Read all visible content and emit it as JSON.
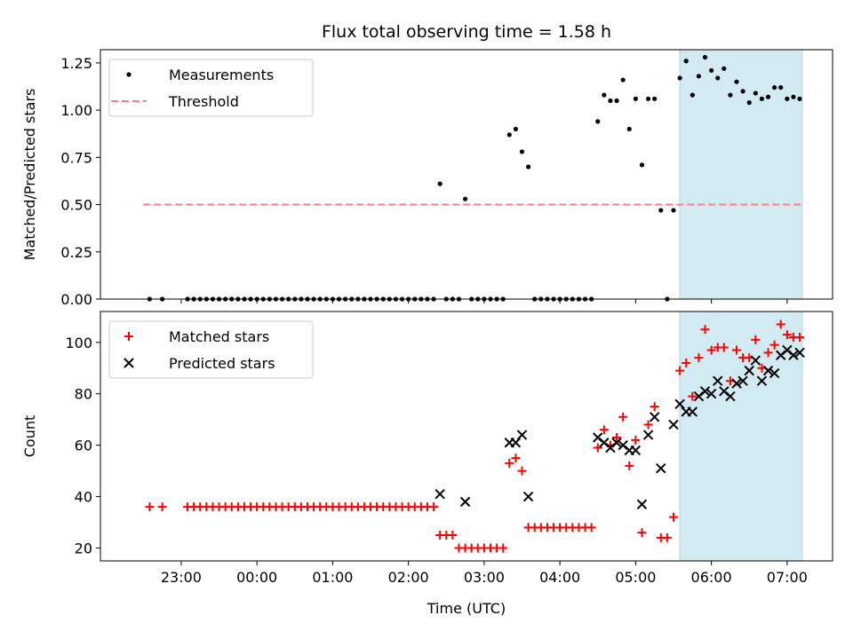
{
  "chart_data": [
    {
      "type": "scatter",
      "title": "Flux total observing time = 1.58 h",
      "ylabel": "Matched/Predicted stars",
      "xlabel": "",
      "ylim": [
        0,
        1.32
      ],
      "yticks": [
        "0.00",
        "0.25",
        "0.50",
        "0.75",
        "1.00",
        "1.25"
      ],
      "x_tick_labels": [],
      "legend_position": "upper-left",
      "shaded_region": {
        "x_start": "05:35",
        "x_end": "07:12",
        "color": "#add8e6"
      },
      "series": [
        {
          "name": "Measurements",
          "marker": "dot",
          "color": "#000000",
          "points": [
            [
              "22:35",
              0
            ],
            [
              "22:45",
              0
            ],
            [
              "23:05",
              0
            ],
            [
              "23:10",
              0
            ],
            [
              "23:15",
              0
            ],
            [
              "23:20",
              0
            ],
            [
              "23:25",
              0
            ],
            [
              "23:30",
              0
            ],
            [
              "23:35",
              0
            ],
            [
              "23:40",
              0
            ],
            [
              "23:45",
              0
            ],
            [
              "23:50",
              0
            ],
            [
              "23:55",
              0
            ],
            [
              "00:00",
              0
            ],
            [
              "00:05",
              0
            ],
            [
              "00:10",
              0
            ],
            [
              "00:15",
              0
            ],
            [
              "00:20",
              0
            ],
            [
              "00:25",
              0
            ],
            [
              "00:30",
              0
            ],
            [
              "00:35",
              0
            ],
            [
              "00:40",
              0
            ],
            [
              "00:45",
              0
            ],
            [
              "00:50",
              0
            ],
            [
              "00:55",
              0
            ],
            [
              "01:00",
              0
            ],
            [
              "01:05",
              0
            ],
            [
              "01:10",
              0
            ],
            [
              "01:15",
              0
            ],
            [
              "01:20",
              0
            ],
            [
              "01:25",
              0
            ],
            [
              "01:30",
              0
            ],
            [
              "01:35",
              0
            ],
            [
              "01:40",
              0
            ],
            [
              "01:45",
              0
            ],
            [
              "01:50",
              0
            ],
            [
              "01:55",
              0
            ],
            [
              "02:00",
              0
            ],
            [
              "02:05",
              0
            ],
            [
              "02:10",
              0
            ],
            [
              "02:15",
              0
            ],
            [
              "02:20",
              0
            ],
            [
              "02:25",
              0.61
            ],
            [
              "02:30",
              0
            ],
            [
              "02:35",
              0
            ],
            [
              "02:40",
              0
            ],
            [
              "02:45",
              0.53
            ],
            [
              "02:50",
              0
            ],
            [
              "02:55",
              0
            ],
            [
              "03:00",
              0
            ],
            [
              "03:05",
              0
            ],
            [
              "03:10",
              0
            ],
            [
              "03:15",
              0
            ],
            [
              "03:20",
              0.87
            ],
            [
              "03:25",
              0.9
            ],
            [
              "03:30",
              0.78
            ],
            [
              "03:35",
              0.7
            ],
            [
              "03:40",
              0
            ],
            [
              "03:45",
              0
            ],
            [
              "03:50",
              0
            ],
            [
              "03:55",
              0
            ],
            [
              "04:00",
              0
            ],
            [
              "04:05",
              0
            ],
            [
              "04:10",
              0
            ],
            [
              "04:15",
              0
            ],
            [
              "04:20",
              0
            ],
            [
              "04:25",
              0
            ],
            [
              "04:30",
              0.94
            ],
            [
              "04:35",
              1.08
            ],
            [
              "04:40",
              1.05
            ],
            [
              "04:45",
              1.05
            ],
            [
              "04:50",
              1.16
            ],
            [
              "04:55",
              0.9
            ],
            [
              "05:00",
              1.06
            ],
            [
              "05:05",
              0.71
            ],
            [
              "05:10",
              1.06
            ],
            [
              "05:15",
              1.06
            ],
            [
              "05:20",
              0.47
            ],
            [
              "05:25",
              0
            ],
            [
              "05:30",
              0.47
            ],
            [
              "05:35",
              1.17
            ],
            [
              "05:40",
              1.26
            ],
            [
              "05:45",
              1.08
            ],
            [
              "05:50",
              1.18
            ],
            [
              "05:55",
              1.28
            ],
            [
              "06:00",
              1.21
            ],
            [
              "06:05",
              1.17
            ],
            [
              "06:10",
              1.22
            ],
            [
              "06:15",
              1.08
            ],
            [
              "06:20",
              1.15
            ],
            [
              "06:25",
              1.1
            ],
            [
              "06:30",
              1.04
            ],
            [
              "06:35",
              1.09
            ],
            [
              "06:40",
              1.06
            ],
            [
              "06:45",
              1.07
            ],
            [
              "06:50",
              1.12
            ],
            [
              "06:55",
              1.12
            ],
            [
              "07:00",
              1.06
            ],
            [
              "07:05",
              1.07
            ],
            [
              "07:10",
              1.06
            ]
          ]
        },
        {
          "name": "Threshold",
          "marker": "dashed-line",
          "color": "#ff7f7f",
          "points": [
            [
              "22:30",
              0.5
            ],
            [
              "07:12",
              0.5
            ]
          ]
        }
      ]
    },
    {
      "type": "scatter",
      "title": "",
      "ylabel": "Count",
      "xlabel": "Time (UTC)",
      "ylim": [
        15,
        112
      ],
      "yticks": [
        "20",
        "40",
        "60",
        "80",
        "100"
      ],
      "x_tick_labels": [
        "23:00",
        "00:00",
        "01:00",
        "02:00",
        "03:00",
        "04:00",
        "05:00",
        "06:00",
        "07:00"
      ],
      "x_range": [
        "21:56",
        "07:36"
      ],
      "legend_position": "upper-left",
      "shaded_region": {
        "x_start": "05:35",
        "x_end": "07:12",
        "color": "#add8e6"
      },
      "series": [
        {
          "name": "Matched stars",
          "marker": "plus",
          "color": "#ff0000",
          "points": [
            [
              "22:35",
              36
            ],
            [
              "22:45",
              36
            ],
            [
              "23:05",
              36
            ],
            [
              "23:10",
              36
            ],
            [
              "23:15",
              36
            ],
            [
              "23:20",
              36
            ],
            [
              "23:25",
              36
            ],
            [
              "23:30",
              36
            ],
            [
              "23:35",
              36
            ],
            [
              "23:40",
              36
            ],
            [
              "23:45",
              36
            ],
            [
              "23:50",
              36
            ],
            [
              "23:55",
              36
            ],
            [
              "00:00",
              36
            ],
            [
              "00:05",
              36
            ],
            [
              "00:10",
              36
            ],
            [
              "00:15",
              36
            ],
            [
              "00:20",
              36
            ],
            [
              "00:25",
              36
            ],
            [
              "00:30",
              36
            ],
            [
              "00:35",
              36
            ],
            [
              "00:40",
              36
            ],
            [
              "00:45",
              36
            ],
            [
              "00:50",
              36
            ],
            [
              "00:55",
              36
            ],
            [
              "01:00",
              36
            ],
            [
              "01:05",
              36
            ],
            [
              "01:10",
              36
            ],
            [
              "01:15",
              36
            ],
            [
              "01:20",
              36
            ],
            [
              "01:25",
              36
            ],
            [
              "01:30",
              36
            ],
            [
              "01:35",
              36
            ],
            [
              "01:40",
              36
            ],
            [
              "01:45",
              36
            ],
            [
              "01:50",
              36
            ],
            [
              "01:55",
              36
            ],
            [
              "02:00",
              36
            ],
            [
              "02:05",
              36
            ],
            [
              "02:10",
              36
            ],
            [
              "02:15",
              36
            ],
            [
              "02:20",
              36
            ],
            [
              "02:25",
              25
            ],
            [
              "02:30",
              25
            ],
            [
              "02:35",
              25
            ],
            [
              "02:40",
              20
            ],
            [
              "02:45",
              20
            ],
            [
              "02:50",
              20
            ],
            [
              "02:55",
              20
            ],
            [
              "03:00",
              20
            ],
            [
              "03:05",
              20
            ],
            [
              "03:10",
              20
            ],
            [
              "03:15",
              20
            ],
            [
              "03:20",
              53
            ],
            [
              "03:25",
              55
            ],
            [
              "03:30",
              50
            ],
            [
              "03:35",
              28
            ],
            [
              "03:40",
              28
            ],
            [
              "03:45",
              28
            ],
            [
              "03:50",
              28
            ],
            [
              "03:55",
              28
            ],
            [
              "04:00",
              28
            ],
            [
              "04:05",
              28
            ],
            [
              "04:10",
              28
            ],
            [
              "04:15",
              28
            ],
            [
              "04:20",
              28
            ],
            [
              "04:25",
              28
            ],
            [
              "04:30",
              59
            ],
            [
              "04:35",
              66
            ],
            [
              "04:40",
              60
            ],
            [
              "04:45",
              63
            ],
            [
              "04:50",
              71
            ],
            [
              "04:55",
              52
            ],
            [
              "05:00",
              62
            ],
            [
              "05:05",
              26
            ],
            [
              "05:10",
              68
            ],
            [
              "05:15",
              75
            ],
            [
              "05:20",
              24
            ],
            [
              "05:25",
              24
            ],
            [
              "05:30",
              32
            ],
            [
              "05:35",
              89
            ],
            [
              "05:40",
              92
            ],
            [
              "05:45",
              79
            ],
            [
              "05:50",
              94
            ],
            [
              "05:55",
              105
            ],
            [
              "06:00",
              97
            ],
            [
              "06:05",
              98
            ],
            [
              "06:10",
              98
            ],
            [
              "06:15",
              85
            ],
            [
              "06:20",
              97
            ],
            [
              "06:25",
              94
            ],
            [
              "06:30",
              94
            ],
            [
              "06:35",
              101
            ],
            [
              "06:40",
              90
            ],
            [
              "06:45",
              96
            ],
            [
              "06:50",
              99
            ],
            [
              "06:55",
              107
            ],
            [
              "07:00",
              103
            ],
            [
              "07:05",
              102
            ],
            [
              "07:10",
              102
            ]
          ]
        },
        {
          "name": "Predicted stars",
          "marker": "x",
          "color": "#000000",
          "points": [
            [
              "02:25",
              41
            ],
            [
              "02:45",
              38
            ],
            [
              "03:20",
              61
            ],
            [
              "03:25",
              61
            ],
            [
              "03:30",
              64
            ],
            [
              "03:35",
              40
            ],
            [
              "04:30",
              63
            ],
            [
              "04:35",
              61
            ],
            [
              "04:40",
              59
            ],
            [
              "04:45",
              61
            ],
            [
              "04:50",
              60
            ],
            [
              "04:55",
              58
            ],
            [
              "05:00",
              58
            ],
            [
              "05:05",
              37
            ],
            [
              "05:10",
              64
            ],
            [
              "05:15",
              71
            ],
            [
              "05:20",
              51
            ],
            [
              "05:30",
              68
            ],
            [
              "05:35",
              76
            ],
            [
              "05:40",
              73
            ],
            [
              "05:45",
              73
            ],
            [
              "05:50",
              79
            ],
            [
              "05:55",
              81
            ],
            [
              "06:00",
              80
            ],
            [
              "06:05",
              85
            ],
            [
              "06:10",
              81
            ],
            [
              "06:15",
              79
            ],
            [
              "06:20",
              84
            ],
            [
              "06:25",
              85
            ],
            [
              "06:30",
              89
            ],
            [
              "06:35",
              93
            ],
            [
              "06:40",
              85
            ],
            [
              "06:45",
              89
            ],
            [
              "06:50",
              88
            ],
            [
              "06:55",
              95
            ],
            [
              "07:00",
              97
            ],
            [
              "07:05",
              95
            ],
            [
              "07:10",
              96
            ]
          ]
        }
      ]
    }
  ]
}
